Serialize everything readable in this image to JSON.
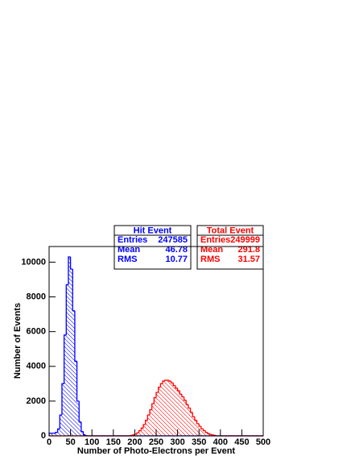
{
  "chart_data": {
    "type": "histogram",
    "xlabel": "Number of Photo-Electrons per Event",
    "ylabel": "Number of Events",
    "bins": [
      0,
      5,
      10,
      15,
      20,
      25,
      30,
      35,
      40,
      45,
      50,
      55,
      60,
      65,
      70,
      75,
      80,
      85,
      90,
      95,
      100,
      105,
      110,
      115,
      120,
      125,
      130,
      135,
      140,
      145,
      150,
      155,
      160,
      165,
      170,
      175,
      180,
      185,
      190,
      195,
      200,
      205,
      210,
      215,
      220,
      225,
      230,
      235,
      240,
      245,
      250,
      255,
      260,
      265,
      270,
      275,
      280,
      285,
      290,
      295,
      300,
      305,
      310,
      315,
      320,
      325,
      330,
      335,
      340,
      345,
      350,
      355,
      360,
      365,
      370,
      375,
      380,
      385,
      390,
      395,
      400,
      405,
      410,
      415,
      420,
      425,
      430,
      435,
      440,
      445,
      450,
      455,
      460,
      465,
      470,
      475,
      480,
      485,
      490,
      495,
      500
    ],
    "series": [
      {
        "name": "Hit Event",
        "color": "#0000ff",
        "values": [
          150,
          150,
          150,
          200,
          400,
          1200,
          3000,
          5800,
          8700,
          10300,
          9600,
          7200,
          4300,
          2000,
          800,
          250,
          60,
          10,
          0,
          0,
          0,
          0,
          0,
          0,
          0,
          0,
          0,
          0,
          0,
          0,
          0,
          0,
          0,
          0,
          0,
          0,
          0,
          0,
          0,
          0,
          0,
          0,
          0,
          0,
          0,
          0,
          0,
          0,
          0,
          0,
          0,
          0,
          0,
          0,
          0,
          0,
          0,
          0,
          0,
          0,
          0,
          0,
          0,
          0,
          0,
          0,
          0,
          0,
          0,
          0,
          0,
          0,
          0,
          0,
          0,
          0,
          0,
          0,
          0,
          0,
          0,
          0,
          0,
          0,
          0,
          0,
          0,
          0,
          0,
          0,
          0,
          0,
          0,
          0,
          0,
          0,
          0,
          0,
          0,
          0
        ],
        "stats": [
          {
            "label": "Entries",
            "value": 247585
          },
          {
            "label": "Mean",
            "value": 46.78
          },
          {
            "label": "RMS",
            "value": 10.77
          }
        ]
      },
      {
        "name": "Total Event",
        "color": "#ff0000",
        "values": [
          0,
          0,
          0,
          0,
          0,
          0,
          0,
          0,
          0,
          0,
          0,
          0,
          0,
          0,
          0,
          0,
          0,
          0,
          0,
          0,
          0,
          0,
          0,
          0,
          0,
          0,
          0,
          0,
          0,
          0,
          0,
          0,
          0,
          0,
          0,
          0,
          0,
          0,
          30,
          50,
          100,
          180,
          300,
          450,
          650,
          900,
          1200,
          1500,
          1850,
          2200,
          2500,
          2800,
          3000,
          3150,
          3200,
          3200,
          3150,
          3050,
          2900,
          2750,
          2600,
          2400,
          2250,
          2050,
          1800,
          1600,
          1350,
          1100,
          900,
          700,
          550,
          400,
          300,
          200,
          130,
          80,
          50,
          30,
          0,
          0,
          0,
          0,
          0,
          0,
          0,
          0,
          0,
          0,
          0,
          0,
          0,
          0,
          0,
          0,
          0,
          0,
          0,
          0,
          0,
          0
        ],
        "stats": [
          {
            "label": "Entries",
            "value": 249999
          },
          {
            "label": "Mean",
            "value": 291.8
          },
          {
            "label": "RMS",
            "value": 31.57
          }
        ]
      }
    ],
    "xlim": [
      0,
      500
    ],
    "ylim": [
      0,
      10900
    ],
    "xticks": [
      0,
      50,
      100,
      150,
      200,
      250,
      300,
      350,
      400,
      450,
      500
    ],
    "yticks": [
      0,
      2000,
      4000,
      6000,
      8000,
      10000
    ]
  }
}
